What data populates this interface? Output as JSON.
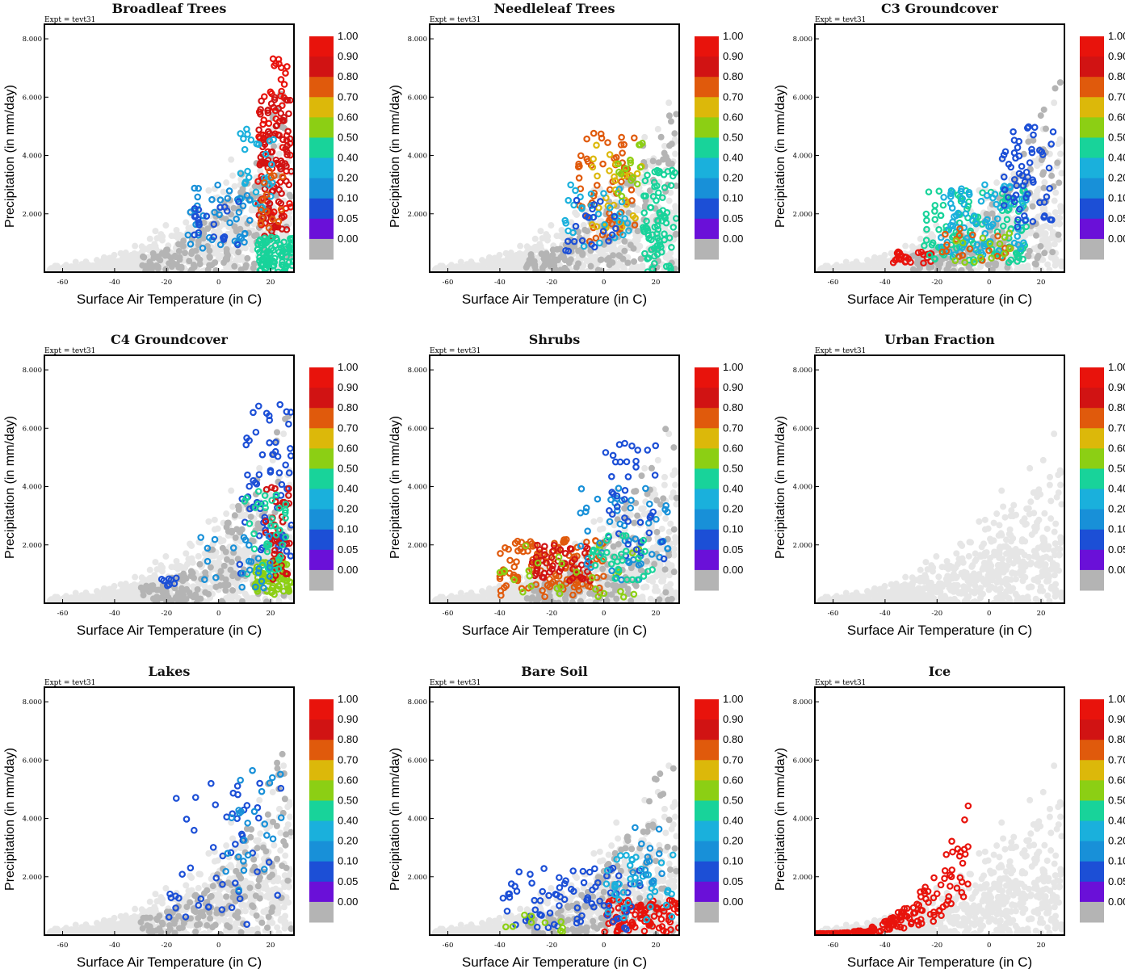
{
  "figure": {
    "description_id": "vegetation-fraction-scatter-grid"
  },
  "colorbar": {
    "levels": [
      "1.00",
      "0.90",
      "0.80",
      "0.70",
      "0.60",
      "0.50",
      "0.40",
      "0.20",
      "0.10",
      "0.05",
      "0.00"
    ],
    "colors": [
      "#e8130c",
      "#d11313",
      "#e05a0c",
      "#dcb80a",
      "#8ccf14",
      "#18d39a",
      "#1ab0dc",
      "#1890d8",
      "#1c4fd6",
      "#6a10d8",
      "#b4b4b4"
    ]
  },
  "colors": {
    "background_points": "#e6e6e6",
    "zero_fraction": "#b4b4b4"
  },
  "chart_data": [
    {
      "type": "scatter",
      "title": "Broadleaf Trees",
      "annotation": "Expt = tevt31",
      "xlabel": "Surface Air Temperature (in C)",
      "ylabel": "Precipitation (in mm/day)",
      "xlim": [
        -67,
        29
      ],
      "ylim": [
        0,
        8500
      ],
      "xticks": [
        "-60",
        "-40",
        "-20",
        "0",
        "20"
      ],
      "yticks": [
        "2.000",
        "4.000",
        "6.000",
        "8.000"
      ],
      "clusters": [
        {
          "fraction": 0.95,
          "x_range": [
            15,
            28
          ],
          "y_range": [
            1500,
            7400
          ],
          "n": 70
        },
        {
          "fraction": 0.85,
          "x_range": [
            15,
            28
          ],
          "y_range": [
            1200,
            6000
          ],
          "n": 90
        },
        {
          "fraction": 0.4,
          "x_range": [
            15,
            29
          ],
          "y_range": [
            0,
            1200
          ],
          "n": 90
        },
        {
          "fraction": 0.3,
          "x_range": [
            8,
            22
          ],
          "y_range": [
            2000,
            5000
          ],
          "n": 30
        },
        {
          "fraction": 0.15,
          "x_range": [
            -12,
            12
          ],
          "y_range": [
            800,
            3000
          ],
          "n": 40
        },
        {
          "fraction": 0.07,
          "x_range": [
            -12,
            10
          ],
          "y_range": [
            800,
            2500
          ],
          "n": 20
        },
        {
          "fraction": 0.7,
          "x_range": [
            16,
            26
          ],
          "y_range": [
            1500,
            3500
          ],
          "n": 15
        }
      ]
    },
    {
      "type": "scatter",
      "title": "Needleleaf Trees",
      "annotation": "Expt = tevt31",
      "xlabel": "Surface Air Temperature (in C)",
      "ylabel": "Precipitation (in mm/day)",
      "xlim": [
        -67,
        29
      ],
      "ylim": [
        0,
        8500
      ],
      "xticks": [
        "-60",
        "-40",
        "-20",
        "0",
        "20"
      ],
      "yticks": [
        "2.000",
        "4.000",
        "6.000",
        "8.000"
      ],
      "clusters": [
        {
          "fraction": 0.7,
          "x_range": [
            -10,
            12
          ],
          "y_range": [
            1000,
            4800
          ],
          "n": 60
        },
        {
          "fraction": 0.6,
          "x_range": [
            -5,
            15
          ],
          "y_range": [
            1500,
            4500
          ],
          "n": 30
        },
        {
          "fraction": 0.4,
          "x_range": [
            15,
            28
          ],
          "y_range": [
            0,
            3500
          ],
          "n": 80
        },
        {
          "fraction": 0.2,
          "x_range": [
            -15,
            10
          ],
          "y_range": [
            800,
            3000
          ],
          "n": 30
        },
        {
          "fraction": 0.08,
          "x_range": [
            -15,
            5
          ],
          "y_range": [
            500,
            2500
          ],
          "n": 20
        },
        {
          "fraction": 0.5,
          "x_range": [
            5,
            15
          ],
          "y_range": [
            2500,
            4500
          ],
          "n": 15
        }
      ]
    },
    {
      "type": "scatter",
      "title": "C3 Groundcover",
      "annotation": "Expt = tevt31",
      "xlabel": "Surface Air Temperature (in C)",
      "ylabel": "Precipitation (in mm/day)",
      "xlim": [
        -67,
        29
      ],
      "ylim": [
        0,
        8500
      ],
      "xticks": [
        "-60",
        "-40",
        "-20",
        "0",
        "20"
      ],
      "yticks": [
        "2.000",
        "4.000",
        "6.000",
        "8.000"
      ],
      "clusters": [
        {
          "fraction": 0.95,
          "x_range": [
            -37,
            -22
          ],
          "y_range": [
            300,
            700
          ],
          "n": 25
        },
        {
          "fraction": 0.4,
          "x_range": [
            -25,
            15
          ],
          "y_range": [
            300,
            2800
          ],
          "n": 110
        },
        {
          "fraction": 0.2,
          "x_range": [
            -20,
            15
          ],
          "y_range": [
            500,
            3000
          ],
          "n": 80
        },
        {
          "fraction": 0.08,
          "x_range": [
            5,
            25
          ],
          "y_range": [
            1500,
            5000
          ],
          "n": 60
        },
        {
          "fraction": 0.7,
          "x_range": [
            -20,
            10
          ],
          "y_range": [
            300,
            1500
          ],
          "n": 20
        },
        {
          "fraction": 0.55,
          "x_range": [
            -15,
            10
          ],
          "y_range": [
            300,
            1500
          ],
          "n": 15
        }
      ]
    },
    {
      "type": "scatter",
      "title": "C4 Groundcover",
      "annotation": "Expt = tevt31",
      "xlabel": "Surface Air Temperature (in C)",
      "ylabel": "Precipitation (in mm/day)",
      "xlim": [
        -67,
        29
      ],
      "ylim": [
        0,
        8500
      ],
      "xticks": [
        "-60",
        "-40",
        "-20",
        "0",
        "20"
      ],
      "yticks": [
        "2.000",
        "4.000",
        "6.000",
        "8.000"
      ],
      "clusters": [
        {
          "fraction": 0.5,
          "x_range": [
            14,
            28
          ],
          "y_range": [
            300,
            1500
          ],
          "n": 80
        },
        {
          "fraction": 0.08,
          "x_range": [
            8,
            28
          ],
          "y_range": [
            1000,
            7000
          ],
          "n": 70
        },
        {
          "fraction": 0.85,
          "x_range": [
            18,
            28
          ],
          "y_range": [
            800,
            4000
          ],
          "n": 40
        },
        {
          "fraction": 0.4,
          "x_range": [
            10,
            26
          ],
          "y_range": [
            1000,
            4000
          ],
          "n": 40
        },
        {
          "fraction": 0.15,
          "x_range": [
            -10,
            20
          ],
          "y_range": [
            500,
            2500
          ],
          "n": 25
        },
        {
          "fraction": 0.07,
          "x_range": [
            -24,
            -15
          ],
          "y_range": [
            600,
            900
          ],
          "n": 8
        }
      ]
    },
    {
      "type": "scatter",
      "title": "Shrubs",
      "annotation": "Expt = tevt31",
      "xlabel": "Surface Air Temperature (in C)",
      "ylabel": "Precipitation (in mm/day)",
      "xlim": [
        -67,
        29
      ],
      "ylim": [
        0,
        8500
      ],
      "xticks": [
        "-60",
        "-40",
        "-20",
        "0",
        "20"
      ],
      "yticks": [
        "2.000",
        "4.000",
        "6.000",
        "8.000"
      ],
      "clusters": [
        {
          "fraction": 0.7,
          "x_range": [
            -40,
            0
          ],
          "y_range": [
            200,
            2200
          ],
          "n": 120
        },
        {
          "fraction": 0.85,
          "x_range": [
            -28,
            -5
          ],
          "y_range": [
            700,
            2000
          ],
          "n": 50
        },
        {
          "fraction": 0.5,
          "x_range": [
            -40,
            15
          ],
          "y_range": [
            200,
            2000
          ],
          "n": 30
        },
        {
          "fraction": 0.15,
          "x_range": [
            -10,
            25
          ],
          "y_range": [
            800,
            4000
          ],
          "n": 50
        },
        {
          "fraction": 0.08,
          "x_range": [
            0,
            25
          ],
          "y_range": [
            1500,
            5500
          ],
          "n": 40
        },
        {
          "fraction": 0.4,
          "x_range": [
            -5,
            20
          ],
          "y_range": [
            700,
            2500
          ],
          "n": 30
        }
      ]
    },
    {
      "type": "scatter",
      "title": "Urban Fraction",
      "annotation": "Expt = tevt31",
      "xlabel": "Surface Air Temperature (in C)",
      "ylabel": "Precipitation (in mm/day)",
      "xlim": [
        -67,
        29
      ],
      "ylim": [
        0,
        8500
      ],
      "xticks": [
        "-60",
        "-40",
        "-20",
        "0",
        "20"
      ],
      "yticks": [
        "2.000",
        "4.000",
        "6.000",
        "8.000"
      ],
      "clusters": []
    },
    {
      "type": "scatter",
      "title": "Lakes",
      "annotation": "Expt = tevt31",
      "xlabel": "Surface Air Temperature (in C)",
      "ylabel": "Precipitation (in mm/day)",
      "xlim": [
        -67,
        29
      ],
      "ylim": [
        0,
        8500
      ],
      "xticks": [
        "-60",
        "-40",
        "-20",
        "0",
        "20"
      ],
      "yticks": [
        "2.000",
        "4.000",
        "6.000",
        "8.000"
      ],
      "clusters": [
        {
          "fraction": 0.07,
          "x_range": [
            -20,
            25
          ],
          "y_range": [
            300,
            5500
          ],
          "n": 50
        },
        {
          "fraction": 0.15,
          "x_range": [
            0,
            25
          ],
          "y_range": [
            1500,
            6000
          ],
          "n": 25
        }
      ]
    },
    {
      "type": "scatter",
      "title": "Bare Soil",
      "annotation": "Expt = tevt31",
      "xlabel": "Surface Air Temperature (in C)",
      "ylabel": "Precipitation (in mm/day)",
      "xlim": [
        -67,
        29
      ],
      "ylim": [
        0,
        8500
      ],
      "xticks": [
        "-60",
        "-40",
        "-20",
        "0",
        "20"
      ],
      "yticks": [
        "2.000",
        "4.000",
        "6.000",
        "8.000"
      ],
      "clusters": [
        {
          "fraction": 0.95,
          "x_range": [
            0,
            29
          ],
          "y_range": [
            100,
            1200
          ],
          "n": 90
        },
        {
          "fraction": 0.07,
          "x_range": [
            -40,
            15
          ],
          "y_range": [
            200,
            2300
          ],
          "n": 80
        },
        {
          "fraction": 0.3,
          "x_range": [
            0,
            28
          ],
          "y_range": [
            500,
            2800
          ],
          "n": 40
        },
        {
          "fraction": 0.5,
          "x_range": [
            -40,
            -15
          ],
          "y_range": [
            100,
            700
          ],
          "n": 10
        },
        {
          "fraction": 0.12,
          "x_range": [
            10,
            25
          ],
          "y_range": [
            1500,
            3700
          ],
          "n": 15
        }
      ]
    },
    {
      "type": "scatter",
      "title": "Ice",
      "annotation": "Expt = tevt31",
      "xlabel": "Surface Air Temperature (in C)",
      "ylabel": "Precipitation (in mm/day)",
      "xlim": [
        -67,
        29
      ],
      "ylim": [
        0,
        8500
      ],
      "xticks": [
        "-60",
        "-40",
        "-20",
        "0",
        "20"
      ],
      "yticks": [
        "2.000",
        "4.000",
        "6.000",
        "8.000"
      ],
      "clusters": [
        {
          "fraction": 0.95,
          "x_range": [
            -67,
            -8
          ],
          "y_range": [
            50,
            4600
          ],
          "n": 160,
          "shape": "rising"
        }
      ]
    }
  ]
}
